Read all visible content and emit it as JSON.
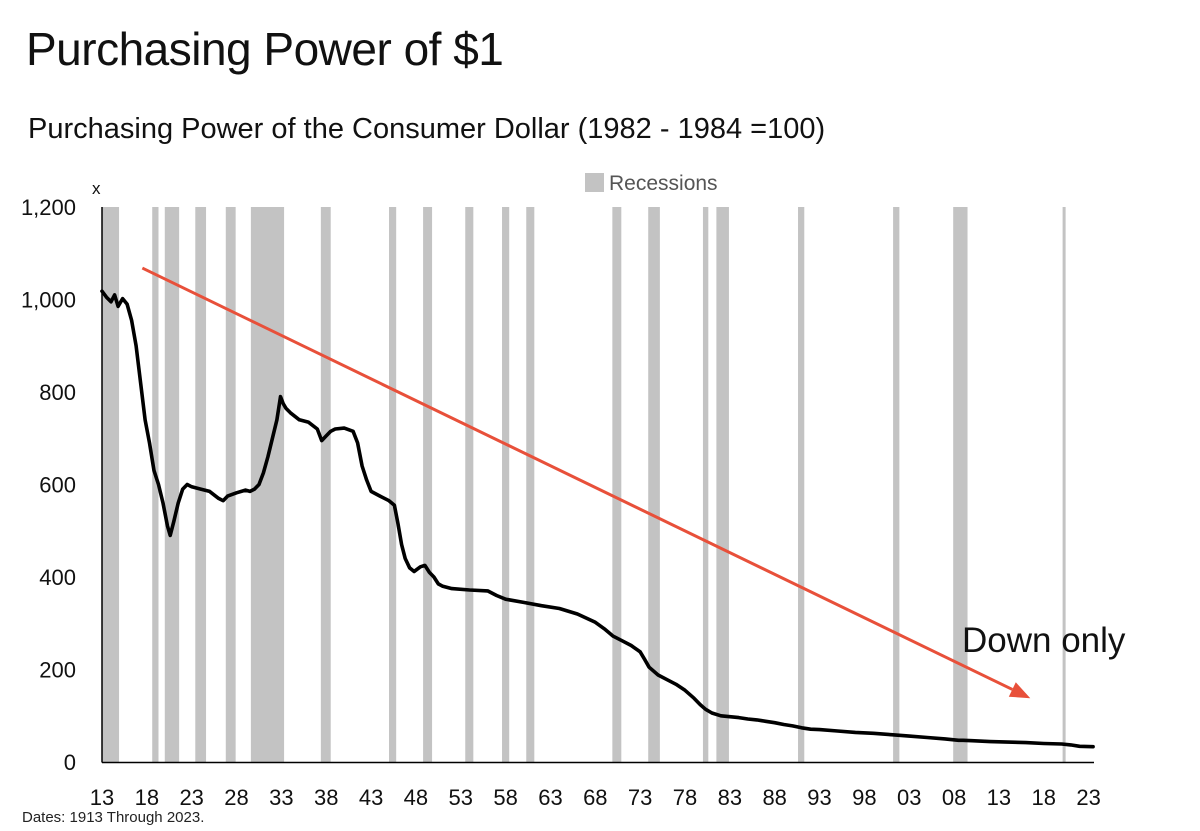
{
  "title": "Purchasing Power of $1",
  "subtitle": "Purchasing Power of the Consumer Dollar (1982 - 1984 =100)",
  "footnote": "Dates: 1913 Through 2023.",
  "chart_data": {
    "type": "line",
    "ylim": [
      0,
      1200
    ],
    "xlim": [
      1913,
      2023.6
    ],
    "y_ticks": [
      0,
      200,
      400,
      600,
      800,
      1000,
      1200
    ],
    "y_tick_labels": [
      "0",
      "200",
      "400",
      "600",
      "800",
      "1,000",
      "1,200"
    ],
    "y_unit_label": "x",
    "x_ticks": [
      1913,
      1918,
      1923,
      1928,
      1933,
      1938,
      1943,
      1948,
      1953,
      1958,
      1963,
      1968,
      1973,
      1978,
      1983,
      1988,
      1993,
      1998,
      2003,
      2008,
      2013,
      2018,
      2023
    ],
    "x_tick_labels": [
      "13",
      "18",
      "23",
      "28",
      "33",
      "38",
      "43",
      "48",
      "53",
      "58",
      "63",
      "68",
      "73",
      "78",
      "83",
      "88",
      "93",
      "98",
      "03",
      "08",
      "13",
      "18",
      "23"
    ],
    "legend": {
      "label": "Recessions",
      "position": "top-center"
    },
    "recessions": [
      [
        1913.0,
        1914.9
      ],
      [
        1918.6,
        1919.3
      ],
      [
        1920.0,
        1921.6
      ],
      [
        1923.4,
        1924.6
      ],
      [
        1926.8,
        1927.9
      ],
      [
        1929.6,
        1933.3
      ],
      [
        1937.4,
        1938.5
      ],
      [
        1945.0,
        1945.8
      ],
      [
        1948.8,
        1949.8
      ],
      [
        1953.5,
        1954.4
      ],
      [
        1957.6,
        1958.4
      ],
      [
        1960.3,
        1961.2
      ],
      [
        1969.9,
        1970.9
      ],
      [
        1973.9,
        1975.2
      ],
      [
        1980.0,
        1980.6
      ],
      [
        1981.5,
        1982.9
      ],
      [
        1990.6,
        1991.3
      ],
      [
        2001.2,
        2001.9
      ],
      [
        2007.9,
        2009.5
      ],
      [
        2020.1,
        2020.4
      ]
    ],
    "series": [
      {
        "color": "#000000",
        "points": [
          [
            1913.0,
            1018
          ],
          [
            1913.5,
            1005
          ],
          [
            1914.0,
            995
          ],
          [
            1914.4,
            1010
          ],
          [
            1914.8,
            985
          ],
          [
            1915.3,
            1002
          ],
          [
            1915.8,
            990
          ],
          [
            1916.3,
            955
          ],
          [
            1916.8,
            900
          ],
          [
            1917.3,
            820
          ],
          [
            1917.8,
            740
          ],
          [
            1918.3,
            690
          ],
          [
            1918.8,
            630
          ],
          [
            1919.3,
            600
          ],
          [
            1919.8,
            560
          ],
          [
            1920.3,
            510
          ],
          [
            1920.6,
            490
          ],
          [
            1921.0,
            520
          ],
          [
            1921.5,
            560
          ],
          [
            1922.0,
            590
          ],
          [
            1922.5,
            600
          ],
          [
            1923.0,
            595
          ],
          [
            1924.0,
            590
          ],
          [
            1925.0,
            585
          ],
          [
            1926.0,
            570
          ],
          [
            1926.5,
            565
          ],
          [
            1927.0,
            575
          ],
          [
            1928.0,
            582
          ],
          [
            1929.0,
            588
          ],
          [
            1929.5,
            585
          ],
          [
            1930.0,
            590
          ],
          [
            1930.5,
            600
          ],
          [
            1931.0,
            625
          ],
          [
            1931.5,
            660
          ],
          [
            1932.0,
            700
          ],
          [
            1932.5,
            740
          ],
          [
            1932.9,
            790
          ],
          [
            1933.2,
            775
          ],
          [
            1933.5,
            765
          ],
          [
            1934.0,
            755
          ],
          [
            1935.0,
            740
          ],
          [
            1936.0,
            735
          ],
          [
            1937.0,
            720
          ],
          [
            1937.5,
            695
          ],
          [
            1938.0,
            705
          ],
          [
            1938.5,
            715
          ],
          [
            1939.0,
            720
          ],
          [
            1940.0,
            722
          ],
          [
            1941.0,
            715
          ],
          [
            1941.5,
            690
          ],
          [
            1942.0,
            640
          ],
          [
            1942.5,
            610
          ],
          [
            1943.0,
            585
          ],
          [
            1944.0,
            575
          ],
          [
            1945.0,
            565
          ],
          [
            1945.6,
            555
          ],
          [
            1946.0,
            515
          ],
          [
            1946.4,
            470
          ],
          [
            1946.8,
            440
          ],
          [
            1947.3,
            420
          ],
          [
            1947.8,
            412
          ],
          [
            1948.5,
            422
          ],
          [
            1949.0,
            425
          ],
          [
            1949.5,
            410
          ],
          [
            1950.0,
            400
          ],
          [
            1950.5,
            385
          ],
          [
            1951.0,
            380
          ],
          [
            1952.0,
            375
          ],
          [
            1954.0,
            372
          ],
          [
            1956.0,
            370
          ],
          [
            1957.0,
            360
          ],
          [
            1958.0,
            352
          ],
          [
            1960.0,
            345
          ],
          [
            1962.0,
            338
          ],
          [
            1964.0,
            332
          ],
          [
            1966.0,
            320
          ],
          [
            1968.0,
            302
          ],
          [
            1969.0,
            288
          ],
          [
            1970.0,
            272
          ],
          [
            1971.0,
            262
          ],
          [
            1972.0,
            252
          ],
          [
            1973.0,
            238
          ],
          [
            1973.5,
            222
          ],
          [
            1974.0,
            205
          ],
          [
            1975.0,
            188
          ],
          [
            1976.0,
            178
          ],
          [
            1977.0,
            168
          ],
          [
            1978.0,
            155
          ],
          [
            1979.0,
            138
          ],
          [
            1979.7,
            124
          ],
          [
            1980.3,
            114
          ],
          [
            1981.0,
            106
          ],
          [
            1982.0,
            100
          ],
          [
            1983.0,
            98
          ],
          [
            1984.0,
            96
          ],
          [
            1985.0,
            93
          ],
          [
            1986.0,
            91
          ],
          [
            1987.0,
            88
          ],
          [
            1988.0,
            85
          ],
          [
            1989.0,
            81
          ],
          [
            1990.0,
            78
          ],
          [
            1991.0,
            74
          ],
          [
            1992.0,
            71
          ],
          [
            1993.0,
            70
          ],
          [
            1995.0,
            67
          ],
          [
            1997.0,
            64
          ],
          [
            1999.0,
            62
          ],
          [
            2001.0,
            59
          ],
          [
            2003.0,
            56
          ],
          [
            2005.0,
            53
          ],
          [
            2007.0,
            50
          ],
          [
            2008.5,
            47
          ],
          [
            2009.0,
            47
          ],
          [
            2010.0,
            46
          ],
          [
            2012.0,
            44
          ],
          [
            2014.0,
            43
          ],
          [
            2016.0,
            42
          ],
          [
            2018.0,
            40
          ],
          [
            2020.0,
            39
          ],
          [
            2021.0,
            37
          ],
          [
            2022.0,
            34
          ],
          [
            2023.5,
            33
          ]
        ]
      }
    ],
    "trend_arrow": {
      "color": "#e8503a",
      "from": [
        1917.5,
        1068
      ],
      "to": [
        2016.5,
        138
      ]
    },
    "annotation": {
      "text": "Down only"
    }
  }
}
